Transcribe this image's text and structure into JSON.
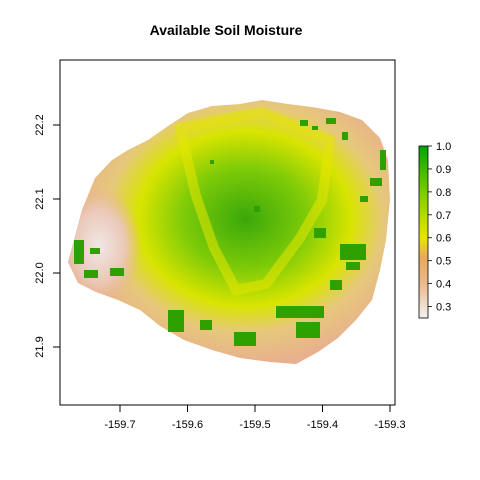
{
  "title": "Available Soil Moisture",
  "x_axis": {
    "ticks": [
      {
        "value": -159.7,
        "label": "-159.7"
      },
      {
        "value": -159.6,
        "label": "-159.6"
      },
      {
        "value": -159.5,
        "label": "-159.5"
      },
      {
        "value": -159.4,
        "label": "-159.4"
      },
      {
        "value": -159.3,
        "label": "-159.3"
      }
    ]
  },
  "y_axis": {
    "ticks": [
      {
        "value": 21.9,
        "label": "21.9"
      },
      {
        "value": 22.0,
        "label": "22.0"
      },
      {
        "value": 22.1,
        "label": "22.1"
      },
      {
        "value": 22.2,
        "label": "22.2"
      }
    ]
  },
  "legend": {
    "ticks": [
      {
        "value": 0.3,
        "label": "0.3"
      },
      {
        "value": 0.4,
        "label": "0.4"
      },
      {
        "value": 0.5,
        "label": "0.5"
      },
      {
        "value": 0.6,
        "label": "0.6"
      },
      {
        "value": 0.7,
        "label": "0.7"
      },
      {
        "value": 0.8,
        "label": "0.8"
      },
      {
        "value": 0.9,
        "label": "0.9"
      },
      {
        "value": 1.0,
        "label": "1.0"
      }
    ],
    "range": [
      0.25,
      1.0
    ],
    "colors": [
      "#f2f2f2",
      "#ebb98e",
      "#eaa95a",
      "#e6e600",
      "#8bd000",
      "#00a600"
    ]
  }
}
